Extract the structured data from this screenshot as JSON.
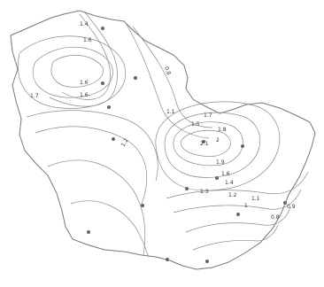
{
  "map": {
    "labels": [
      "1.4",
      "1.6",
      "0.8",
      "1.6",
      "1.7",
      "1.6",
      "1.1",
      "1.5",
      "1.7",
      "1.8",
      "1.2",
      "2",
      "2.1",
      "1.9",
      "1.6",
      "1.4",
      "1.3",
      "1.2",
      "1.1",
      "0.9",
      "1",
      "0.8"
    ],
    "station_count": 15,
    "colors": {
      "contour": "#8a8a8a",
      "outline": "#777777",
      "station": "#666666"
    }
  }
}
